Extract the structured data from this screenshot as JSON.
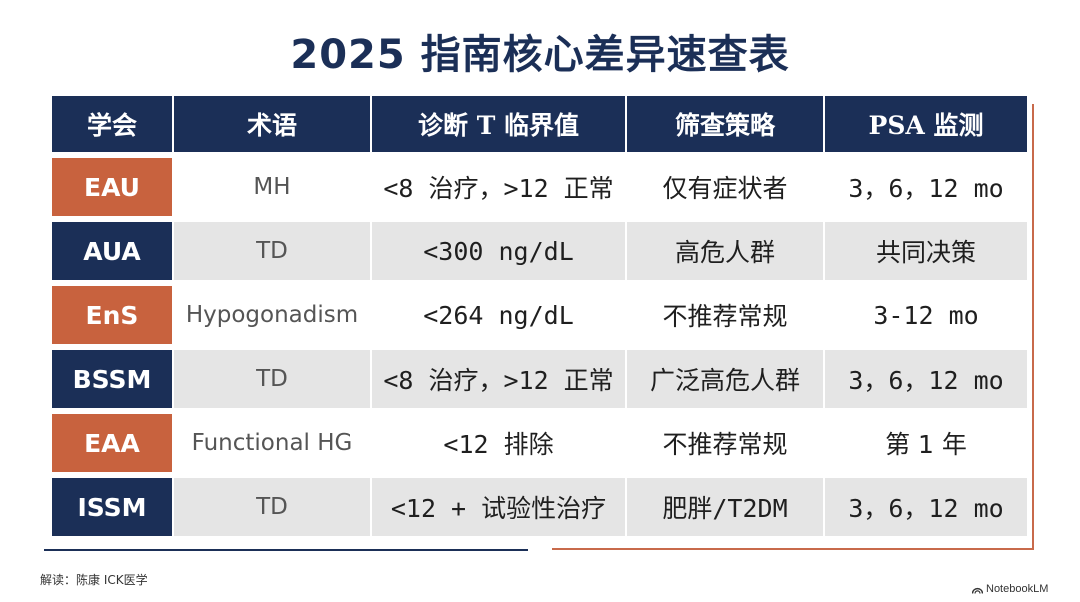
{
  "title": "2025 指南核心差异速查表",
  "table": {
    "headers": [
      "学会",
      "术语",
      "诊断 T 临界值",
      "筛查策略",
      "PSA 监测"
    ],
    "rows": [
      {
        "org": "EAU",
        "org_color": "#c8623e",
        "term": "MH",
        "threshold": "<8 治疗，>12 正常",
        "screening": "仅有症状者",
        "psa": "3，6，12 mo"
      },
      {
        "org": "AUA",
        "org_color": "#1b2f57",
        "term": "TD",
        "threshold": "<300 ng/dL",
        "screening": "高危人群",
        "psa": "共同决策"
      },
      {
        "org": "EnS",
        "org_color": "#c8623e",
        "term": "Hypogonadism",
        "threshold": "<264 ng/dL",
        "screening": "不推荐常规",
        "psa": "3-12 mo"
      },
      {
        "org": "BSSM",
        "org_color": "#1b2f57",
        "term": "TD",
        "threshold": "<8 治疗，>12 正常",
        "screening": "广泛高危人群",
        "psa": "3，6，12 mo"
      },
      {
        "org": "EAA",
        "org_color": "#c8623e",
        "term": "Functional HG",
        "threshold": "<12 排除",
        "screening": "不推荐常规",
        "psa": "第 1 年"
      },
      {
        "org": "ISSM",
        "org_color": "#1b2f57",
        "term": "TD",
        "threshold": "<12 + 试验性治疗",
        "screening": "肥胖/T2DM",
        "psa": "3，6，12 mo"
      }
    ]
  },
  "footer": {
    "credit": "解读：陈康 ICK医学",
    "brand": "NotebookLM",
    "brand_icon": "notebooklm-logo-icon"
  },
  "colors": {
    "navy": "#1b2f57",
    "orange": "#c8623e",
    "row_alt": "#e5e5e5"
  }
}
